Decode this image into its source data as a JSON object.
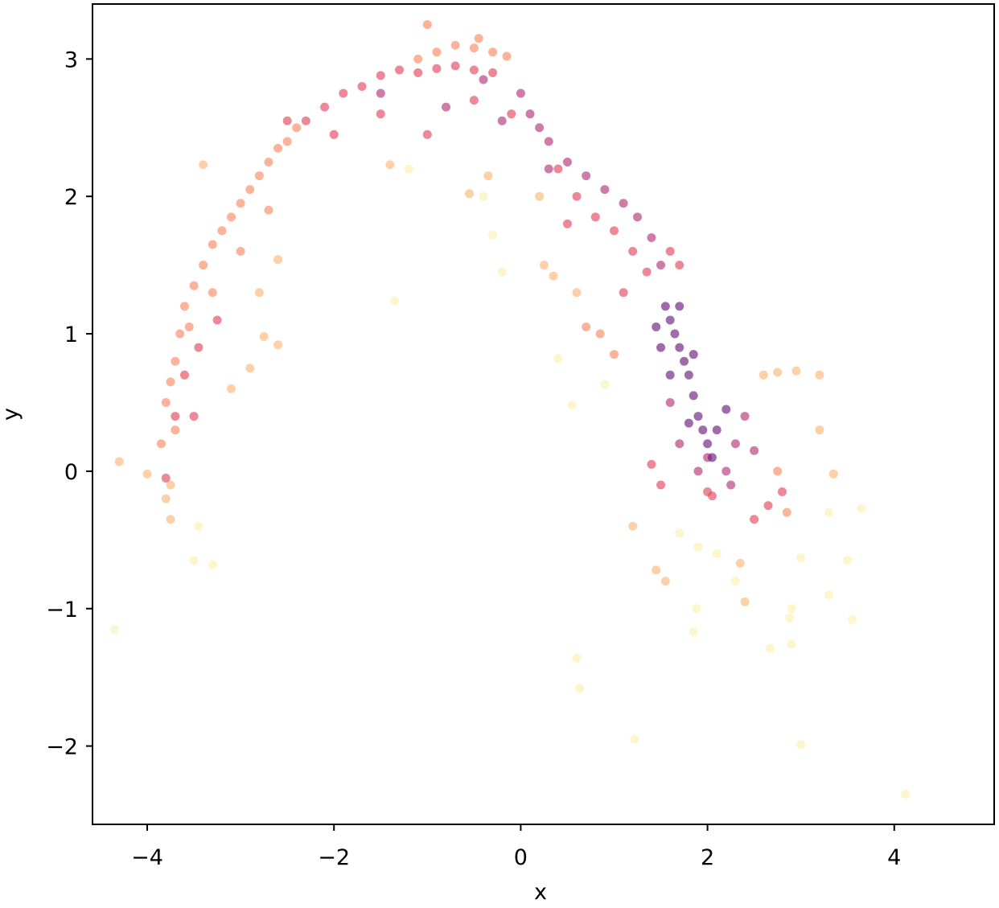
{
  "chart_data": {
    "type": "scatter",
    "xlabel": "x",
    "ylabel": "y",
    "xlim": [
      -4.586,
      5.07
    ],
    "ylim": [
      -2.57,
      3.4
    ],
    "xticks": [
      {
        "value": -4,
        "label": "−4"
      },
      {
        "value": -2,
        "label": "−2"
      },
      0,
      2,
      4
    ],
    "yticks": [
      {
        "value": -2,
        "label": "−2"
      },
      {
        "value": -1,
        "label": "−1"
      },
      0,
      1,
      2,
      3
    ],
    "series": [
      {
        "color": "#fcefb0",
        "x": [
          -4.35,
          -1.35,
          0.6,
          0.63,
          1.22,
          3.0,
          4.12,
          1.85,
          1.88,
          2.67,
          2.9,
          2.88,
          3.3,
          3.55,
          3.3,
          3.65,
          3.5,
          2.9,
          3.0,
          1.9,
          1.7,
          2.3,
          2.1,
          -0.3,
          -0.4,
          -1.2,
          -0.2,
          0.55,
          0.4,
          0.9,
          -3.5,
          -3.3,
          -3.45
        ],
        "values": [
          -1.15,
          1.24,
          -1.36,
          -1.58,
          -1.95,
          -1.99,
          -2.35,
          -1.17,
          -1.0,
          -1.29,
          -1.26,
          -1.07,
          -0.9,
          -1.08,
          -0.3,
          -0.27,
          -0.65,
          -1.0,
          -0.63,
          -0.55,
          -0.45,
          -0.8,
          -0.6,
          1.72,
          2.0,
          2.2,
          1.45,
          0.48,
          0.82,
          0.63,
          -0.65,
          -0.68,
          -0.4
        ]
      },
      {
        "color": "#fdb77a",
        "x": [
          -4.3,
          -4.0,
          -3.75,
          -3.8,
          -3.75,
          -2.6,
          -2.75,
          -3.1,
          -2.9,
          -3.4,
          -2.6,
          -1.4,
          -2.8,
          0.35,
          0.6,
          0.25,
          1.2,
          1.55,
          1.45,
          2.35,
          2.4,
          3.2,
          2.95,
          2.75,
          3.35,
          3.2,
          2.6,
          0.2,
          -0.55,
          -0.35
        ],
        "values": [
          0.07,
          -0.02,
          -0.35,
          -0.2,
          -0.1,
          0.92,
          0.98,
          0.6,
          0.75,
          2.23,
          1.54,
          2.23,
          1.3,
          1.42,
          1.3,
          1.5,
          -0.4,
          -0.8,
          -0.72,
          -0.67,
          -0.95,
          0.7,
          0.73,
          0.72,
          -0.02,
          0.3,
          0.7,
          2.0,
          2.02,
          2.15
        ]
      },
      {
        "color": "#fb8a62",
        "x": [
          -3.85,
          -3.8,
          -3.7,
          -3.65,
          -3.6,
          -3.5,
          -3.4,
          -3.3,
          -3.2,
          -3.1,
          -3.0,
          -2.9,
          -2.8,
          -2.7,
          -2.6,
          -2.5,
          -3.55,
          -3.3,
          -3.0,
          -2.7,
          -3.7,
          -3.75,
          -2.4,
          -1.1,
          -0.9,
          -0.7,
          -0.5,
          -0.3,
          -0.15,
          -1.0,
          -0.45,
          2.75,
          2.85,
          0.7,
          0.85,
          1.0
        ],
        "values": [
          0.2,
          0.5,
          0.8,
          1.0,
          1.2,
          1.35,
          1.5,
          1.65,
          1.75,
          1.85,
          1.95,
          2.05,
          2.15,
          2.25,
          2.35,
          2.4,
          1.05,
          1.3,
          1.6,
          1.9,
          0.3,
          0.65,
          2.5,
          3.0,
          3.05,
          3.1,
          3.08,
          3.05,
          3.02,
          3.25,
          3.15,
          0.0,
          -0.3,
          1.05,
          1.0,
          0.85
        ]
      },
      {
        "color": "#e4495f",
        "x": [
          -3.7,
          -3.6,
          -3.45,
          -3.25,
          -2.3,
          -2.1,
          -1.9,
          -1.7,
          -1.5,
          -1.3,
          -1.1,
          -0.9,
          -0.7,
          -0.5,
          -0.3,
          -2.5,
          -2.0,
          -1.5,
          -1.0,
          -0.5,
          -0.1,
          0.4,
          0.6,
          0.8,
          1.0,
          1.2,
          1.35,
          0.5,
          1.1,
          1.7,
          1.6,
          2.0,
          2.05,
          2.5,
          2.65,
          2.8,
          1.5,
          1.4,
          -3.8,
          -3.5
        ],
        "values": [
          0.4,
          0.7,
          0.9,
          1.1,
          2.55,
          2.65,
          2.75,
          2.8,
          2.88,
          2.92,
          2.9,
          2.93,
          2.95,
          2.92,
          2.9,
          2.55,
          2.45,
          2.6,
          2.45,
          2.7,
          2.6,
          2.2,
          2.0,
          1.85,
          1.75,
          1.6,
          1.45,
          1.8,
          1.3,
          1.5,
          1.6,
          -0.15,
          -0.18,
          -0.35,
          -0.25,
          -0.15,
          -0.1,
          0.05,
          -0.05,
          0.4
        ]
      },
      {
        "color": "#b5367a",
        "x": [
          -0.4,
          0.0,
          0.1,
          0.2,
          0.3,
          0.5,
          0.7,
          0.9,
          1.1,
          1.25,
          1.4,
          1.5,
          -0.2,
          0.3,
          2.0,
          2.2,
          1.9,
          1.7,
          2.3,
          2.4,
          2.5,
          2.25,
          1.6,
          -1.5,
          -0.8
        ],
        "values": [
          2.85,
          2.75,
          2.6,
          2.5,
          2.4,
          2.25,
          2.15,
          2.05,
          1.95,
          1.85,
          1.7,
          1.5,
          2.55,
          2.2,
          0.1,
          0.0,
          0.0,
          0.2,
          0.2,
          0.4,
          0.15,
          -0.1,
          0.5,
          2.75,
          2.65
        ]
      },
      {
        "color": "#6a1c81",
        "x": [
          1.55,
          1.6,
          1.65,
          1.7,
          1.75,
          1.8,
          1.85,
          1.9,
          1.95,
          2.0,
          2.05,
          1.5,
          1.6,
          1.8,
          2.1,
          1.7,
          1.45,
          1.85,
          2.2
        ],
        "values": [
          1.2,
          1.1,
          1.0,
          0.9,
          0.8,
          0.7,
          0.55,
          0.4,
          0.3,
          0.2,
          0.1,
          0.9,
          0.7,
          0.35,
          0.3,
          1.2,
          1.05,
          0.85,
          0.45
        ]
      }
    ]
  }
}
